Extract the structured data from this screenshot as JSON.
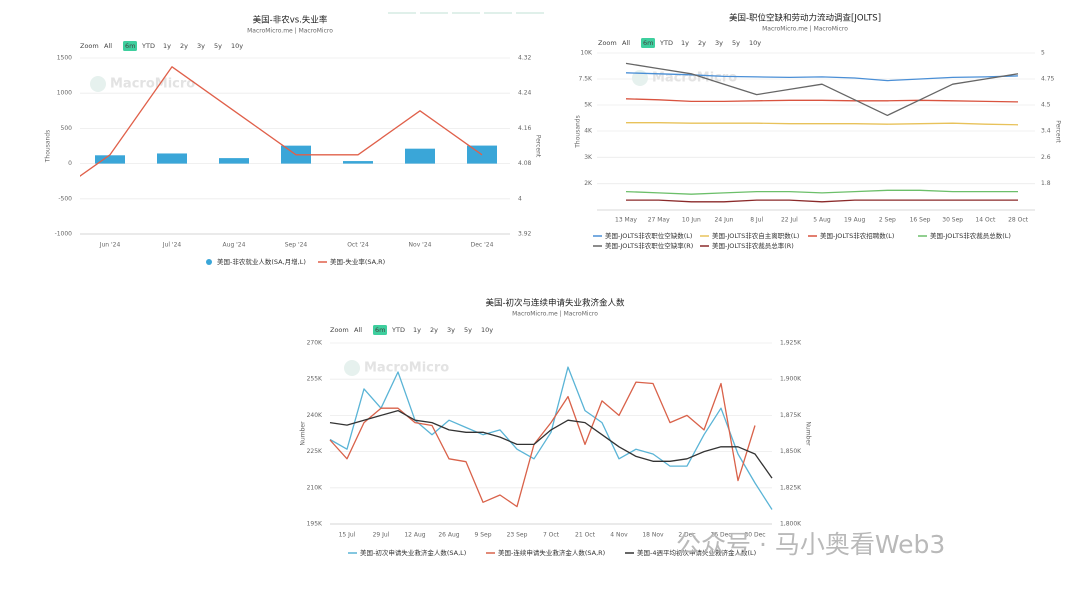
{
  "chart_data": [
    {
      "type": "combo",
      "title": "美国-非农vs.失业率",
      "subtitle": "MacroMicro.me | MacroMicro",
      "watermark": "MacroMicro",
      "range_selector": {
        "label": "Zoom",
        "buttons": [
          "All",
          "6m",
          "YTD",
          "1y",
          "2y",
          "3y",
          "5y",
          "10y"
        ],
        "active": 1
      },
      "categories": [
        null,
        "Jun '24",
        "Jul '24",
        "Aug '24",
        "Sep '24",
        "Oct '24",
        "Nov '24",
        "Dec '24"
      ],
      "ylabel": "Thousands",
      "y2label": "Percent",
      "ylim": [
        -1000,
        1500
      ],
      "yticks": [
        -1000,
        -500,
        0,
        500,
        1000,
        1500
      ],
      "y2lim": [
        3.92,
        4.32
      ],
      "y2ticks": [
        3.92,
        4,
        4.08,
        4.16,
        4.24,
        4.32
      ],
      "grid": true,
      "series": [
        {
          "name": "美国-非农就业人数(SA,月增,L)",
          "type": "bar",
          "color": "#3aa6d8",
          "values": [
            null,
            118,
            144,
            78,
            255,
            36,
            212,
            256
          ]
        },
        {
          "name": "美国-失业率(SA,R)",
          "type": "line",
          "axis": "y2",
          "color": "#e0604a",
          "values": [
            4.0,
            4.1,
            4.3,
            4.2,
            4.1,
            4.1,
            4.2,
            4.1
          ]
        }
      ]
    },
    {
      "type": "line",
      "title": "美国-职位空缺和劳动力流动调查[JOLTS]",
      "subtitle": "MacroMicro.me | MacroMicro",
      "watermark": "MacroMicro",
      "range_selector": {
        "label": "Zoom",
        "buttons": [
          "All",
          "6m",
          "YTD",
          "1y",
          "2y",
          "3y",
          "5y",
          "10y"
        ],
        "active": 1
      },
      "categories": [
        "13 May",
        "27 May",
        "10 Jun",
        "24 Jun",
        "8 Jul",
        "22 Jul",
        "5 Aug",
        "19 Aug",
        "2 Sep",
        "16 Sep",
        "30 Sep",
        "14 Oct",
        "28 Oct"
      ],
      "ylabel": "Thousands",
      "y2label": "Percent",
      "grid": true,
      "panels": [
        {
          "ylim": [
            2500,
            10000
          ],
          "yticks": [
            {
              "value": 5000,
              "label": "5K"
            },
            {
              "value": 7500,
              "label": "7.5K"
            },
            {
              "value": 10000,
              "label": "10K"
            }
          ],
          "y2lim": [
            4.25,
            5
          ],
          "y2ticks": [
            4.5,
            4.75,
            5
          ]
        },
        {
          "ylim": [
            1000,
            4000
          ],
          "yticks": [
            {
              "value": 2000,
              "label": "2K"
            },
            {
              "value": 3000,
              "label": "3K"
            },
            {
              "value": 4000,
              "label": "4K"
            }
          ],
          "y2lim": [
            1.0,
            3.4
          ],
          "y2ticks": [
            1.8,
            2.6,
            3.4
          ]
        }
      ],
      "series": [
        {
          "name": "美国-JOLTS非农职位空缺数(L)",
          "panel": 0,
          "color": "#4a8fd6",
          "values": [
            8100,
            8000,
            7900,
            7750,
            7700,
            7650,
            7700,
            7600,
            7350,
            7500,
            7650,
            7700,
            7800
          ]
        },
        {
          "name": "美国-JOLTS非农自主离职数(L)",
          "panel": 0,
          "color": "#e8c25a",
          "values": [
            3300,
            3300,
            3250,
            3250,
            3250,
            3200,
            3200,
            3200,
            3150,
            3200,
            3250,
            3150,
            3100
          ]
        },
        {
          "name": "美国-JOLTS非农招聘数(L)",
          "panel": 0,
          "color": "#d9533f",
          "values": [
            5600,
            5500,
            5350,
            5350,
            5400,
            5450,
            5450,
            5400,
            5400,
            5450,
            5400,
            5350,
            5300
          ]
        },
        {
          "name": "美国-JOLTS非农裁员总数(L)",
          "panel": 1,
          "color": "#6cbf6a",
          "values": [
            1700,
            1650,
            1600,
            1650,
            1700,
            1700,
            1650,
            1700,
            1750,
            1750,
            1700,
            1700,
            1700
          ]
        },
        {
          "name": "美国-JOLTS非农职位空缺率(R)",
          "panel": 0,
          "axis": "y2",
          "color": "#666666",
          "values": [
            4.9,
            4.85,
            4.8,
            4.7,
            4.6,
            4.65,
            4.7,
            4.55,
            4.4,
            4.55,
            4.7,
            4.75,
            4.8
          ]
        },
        {
          "name": "美国-JOLTS非农裁员总率(R)",
          "panel": 1,
          "axis": "y2",
          "color": "#8b2a2a",
          "values": [
            1.3,
            1.3,
            1.25,
            1.25,
            1.3,
            1.3,
            1.25,
            1.3,
            1.3,
            1.3,
            1.3,
            1.3,
            1.3
          ]
        }
      ]
    },
    {
      "type": "line",
      "title": "美国-初次与连续申请失业救济金人数",
      "subtitle": "MacroMicro.me | MacroMicro",
      "watermark": "MacroMicro",
      "range_selector": {
        "label": "Zoom",
        "buttons": [
          "All",
          "6m",
          "YTD",
          "1y",
          "2y",
          "3y",
          "5y",
          "10y"
        ],
        "active": 1
      },
      "categories": [
        null,
        "15 Jul",
        null,
        "29 Jul",
        null,
        "12 Aug",
        null,
        "26 Aug",
        null,
        "9 Sep",
        null,
        "23 Sep",
        null,
        "7 Oct",
        null,
        "21 Oct",
        null,
        "4 Nov",
        null,
        "18 Nov",
        null,
        "2 Dec",
        null,
        "16 Dec",
        null,
        "30 Dec",
        null
      ],
      "ylabel": "Number",
      "y2label": "Number",
      "grid": true,
      "panels": [
        {
          "ylim": [
            195000,
            270000
          ],
          "yticks": [
            {
              "value": 195000,
              "label": "195K"
            },
            {
              "value": 210000,
              "label": "210K"
            },
            {
              "value": 225000,
              "label": "225K"
            },
            {
              "value": 240000,
              "label": "240K"
            },
            {
              "value": 255000,
              "label": "255K"
            },
            {
              "value": 270000,
              "label": "270K"
            }
          ],
          "y2lim": [
            1800000,
            1925000
          ],
          "y2ticks": [
            {
              "value": 1800000,
              "label": "1,800K"
            },
            {
              "value": 1825000,
              "label": "1,825K"
            },
            {
              "value": 1850000,
              "label": "1,850K"
            },
            {
              "value": 1875000,
              "label": "1,875K"
            },
            {
              "value": 1900000,
              "label": "1,900K"
            },
            {
              "value": 1925000,
              "label": "1,925K"
            }
          ]
        }
      ],
      "series": [
        {
          "name": "美国-初次申请失业救济金人数(SA,L)",
          "panel": 0,
          "color": "#5ab4d6",
          "values": [
            230000,
            226000,
            251000,
            243000,
            258000,
            238000,
            232000,
            238000,
            235000,
            232000,
            234000,
            226000,
            222000,
            233000,
            260000,
            242000,
            237000,
            222000,
            226000,
            224000,
            219000,
            219000,
            232000,
            243000,
            224000,
            212000,
            201000
          ]
        },
        {
          "name": "美国-连续申请失业救济金人数(SA,R)",
          "panel": 0,
          "axis": "y2",
          "color": "#d9624a",
          "values": [
            1858000,
            1845000,
            1870000,
            1880000,
            1880000,
            1870000,
            1868000,
            1845000,
            1843000,
            1815000,
            1820000,
            1812000,
            1855000,
            1870000,
            1888000,
            1855000,
            1885000,
            1875000,
            1898000,
            1897000,
            1870000,
            1875000,
            1865000,
            1897000,
            1830000,
            1868000,
            null
          ]
        },
        {
          "name": "美国-4週平均初次申请失业救济金人数(L)",
          "panel": 0,
          "color": "#333333",
          "values": [
            237000,
            236000,
            238000,
            240000,
            242000,
            238000,
            237000,
            234000,
            233000,
            233000,
            231000,
            228000,
            228000,
            234000,
            238000,
            237000,
            232000,
            227000,
            223000,
            221000,
            221000,
            222000,
            225000,
            227000,
            227000,
            224000,
            214000
          ]
        }
      ]
    }
  ],
  "watermark": "公众号 · 马小奥看Web3"
}
